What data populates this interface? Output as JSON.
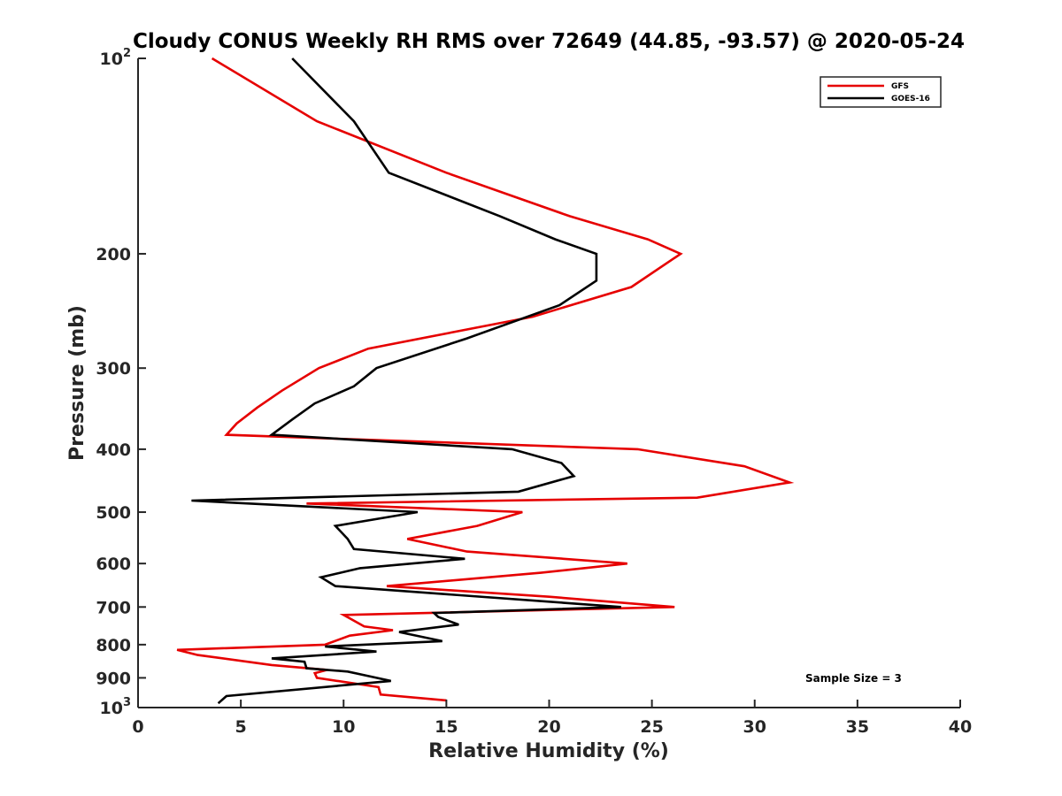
{
  "chart_data": {
    "type": "line",
    "title": "Cloudy CONUS Weekly RH RMS over 72649 (44.85, -93.57) @ 2020-05-24",
    "xlabel": "Relative Humidity (%)",
    "ylabel": "Pressure (mb)",
    "xlim": [
      0,
      40
    ],
    "ylim": [
      100,
      1000
    ],
    "y_scale": "log",
    "y_reversed": true,
    "grid": false,
    "legend_position": "top-right",
    "x_ticks": [
      0,
      5,
      10,
      15,
      20,
      25,
      30,
      35,
      40
    ],
    "x_tick_labels": [
      "0",
      "5",
      "10",
      "15",
      "20",
      "25",
      "30",
      "35",
      "40"
    ],
    "y_ticks": [
      100,
      200,
      300,
      400,
      500,
      600,
      700,
      800,
      900,
      1000
    ],
    "y_tick_labels": [
      {
        "base": "10",
        "sup": "2"
      },
      {
        "base": "200",
        "sup": ""
      },
      {
        "base": "300",
        "sup": ""
      },
      {
        "base": "400",
        "sup": ""
      },
      {
        "base": "500",
        "sup": ""
      },
      {
        "base": "600",
        "sup": ""
      },
      {
        "base": "700",
        "sup": ""
      },
      {
        "base": "800",
        "sup": ""
      },
      {
        "base": "900",
        "sup": ""
      },
      {
        "base": "10",
        "sup": "3"
      }
    ],
    "annotation": "Sample Size = 3",
    "series": [
      {
        "name": "GFS",
        "color": "#e60000",
        "points": [
          [
            3.6,
            100
          ],
          [
            8.7,
            125
          ],
          [
            15,
            150
          ],
          [
            21,
            175
          ],
          [
            24.8,
            190
          ],
          [
            26.4,
            200
          ],
          [
            24,
            225
          ],
          [
            19.2,
            250
          ],
          [
            11.2,
            280
          ],
          [
            8.8,
            300
          ],
          [
            7,
            325
          ],
          [
            5.8,
            345
          ],
          [
            4.8,
            365
          ],
          [
            4.3,
            380
          ],
          [
            24.3,
            400
          ],
          [
            29.5,
            425
          ],
          [
            31.7,
            450
          ],
          [
            27.2,
            475
          ],
          [
            8.2,
            485
          ],
          [
            18.7,
            500
          ],
          [
            16.5,
            525
          ],
          [
            13.1,
            550
          ],
          [
            16,
            575
          ],
          [
            23.8,
            600
          ],
          [
            19.6,
            620
          ],
          [
            12.1,
            650
          ],
          [
            20,
            675
          ],
          [
            26.1,
            700
          ],
          [
            10,
            720
          ],
          [
            11,
            750
          ],
          [
            12.4,
            760
          ],
          [
            10.3,
            775
          ],
          [
            9.1,
            800
          ],
          [
            1.9,
            815
          ],
          [
            2.9,
            830
          ],
          [
            6.5,
            860
          ],
          [
            9.2,
            875
          ],
          [
            8.6,
            885
          ],
          [
            8.7,
            900
          ],
          [
            11.7,
            930
          ],
          [
            11.8,
            955
          ],
          [
            15,
            975
          ]
        ]
      },
      {
        "name": "GOES-16",
        "color": "#000000",
        "points": [
          [
            7.5,
            100
          ],
          [
            10.5,
            125
          ],
          [
            12.2,
            150
          ],
          [
            17.6,
            175
          ],
          [
            20.3,
            190
          ],
          [
            22.3,
            200
          ],
          [
            22.3,
            220
          ],
          [
            20.5,
            240
          ],
          [
            16,
            270
          ],
          [
            11.6,
            300
          ],
          [
            10.5,
            320
          ],
          [
            8.6,
            340
          ],
          [
            7.5,
            360
          ],
          [
            6.5,
            380
          ],
          [
            18.2,
            400
          ],
          [
            20.6,
            420
          ],
          [
            21.2,
            440
          ],
          [
            18.5,
            465
          ],
          [
            2.6,
            480
          ],
          [
            13.6,
            500
          ],
          [
            9.6,
            525
          ],
          [
            10.2,
            550
          ],
          [
            10.5,
            570
          ],
          [
            15.9,
            590
          ],
          [
            10.8,
            610
          ],
          [
            8.9,
            630
          ],
          [
            9.6,
            650
          ],
          [
            23.5,
            700
          ],
          [
            14.4,
            715
          ],
          [
            14.6,
            725
          ],
          [
            15.6,
            745
          ],
          [
            12.7,
            765
          ],
          [
            14.8,
            790
          ],
          [
            9.1,
            805
          ],
          [
            11.6,
            820
          ],
          [
            6.5,
            840
          ],
          [
            8.1,
            850
          ],
          [
            8.2,
            870
          ],
          [
            10.2,
            880
          ],
          [
            12.3,
            910
          ],
          [
            4.3,
            960
          ],
          [
            3.9,
            985
          ]
        ]
      }
    ]
  }
}
